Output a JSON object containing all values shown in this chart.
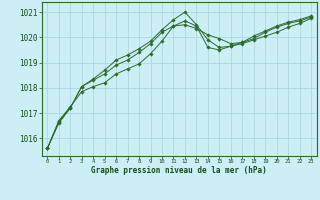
{
  "background_color": "#cceef5",
  "grid_color": "#aad4dc",
  "line_color": "#2d6a2d",
  "marker_color": "#2d6a2d",
  "xlabel": "Graphe pression niveau de la mer (hPa)",
  "xlabel_color": "#1a4a1a",
  "ylabel_ticks": [
    1016,
    1017,
    1018,
    1019,
    1020,
    1021
  ],
  "xlim": [
    -0.5,
    23.5
  ],
  "ylim": [
    1015.3,
    1021.4
  ],
  "xticks": [
    0,
    1,
    2,
    3,
    4,
    5,
    6,
    7,
    8,
    9,
    10,
    11,
    12,
    13,
    14,
    15,
    16,
    17,
    18,
    19,
    20,
    21,
    22,
    23
  ],
  "series1": [
    1015.6,
    1016.7,
    1017.25,
    1017.85,
    1018.05,
    1018.2,
    1018.55,
    1018.75,
    1018.95,
    1019.35,
    1019.85,
    1020.45,
    1020.65,
    1020.45,
    1019.6,
    1019.5,
    1019.65,
    1019.75,
    1019.9,
    1020.05,
    1020.2,
    1020.4,
    1020.55,
    1020.75
  ],
  "series2": [
    1015.6,
    1016.65,
    1017.2,
    1018.05,
    1018.3,
    1018.55,
    1018.9,
    1019.1,
    1019.4,
    1019.75,
    1020.2,
    1020.45,
    1020.5,
    1020.35,
    1020.1,
    1019.95,
    1019.75,
    1019.8,
    1019.95,
    1020.2,
    1020.4,
    1020.55,
    1020.65,
    1020.8
  ],
  "series3": [
    1015.6,
    1016.6,
    1017.2,
    1018.05,
    1018.35,
    1018.7,
    1019.1,
    1019.3,
    1019.55,
    1019.85,
    1020.3,
    1020.7,
    1021.0,
    1020.5,
    1019.9,
    1019.6,
    1019.65,
    1019.8,
    1020.05,
    1020.25,
    1020.45,
    1020.6,
    1020.7,
    1020.85
  ]
}
